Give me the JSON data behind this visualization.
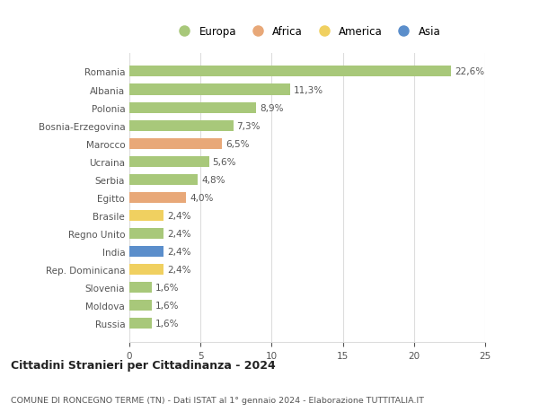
{
  "countries": [
    "Romania",
    "Albania",
    "Polonia",
    "Bosnia-Erzegovina",
    "Marocco",
    "Ucraina",
    "Serbia",
    "Egitto",
    "Brasile",
    "Regno Unito",
    "India",
    "Rep. Dominicana",
    "Slovenia",
    "Moldova",
    "Russia"
  ],
  "values": [
    22.6,
    11.3,
    8.9,
    7.3,
    6.5,
    5.6,
    4.8,
    4.0,
    2.4,
    2.4,
    2.4,
    2.4,
    1.6,
    1.6,
    1.6
  ],
  "labels": [
    "22,6%",
    "11,3%",
    "8,9%",
    "7,3%",
    "6,5%",
    "5,6%",
    "4,8%",
    "4,0%",
    "2,4%",
    "2,4%",
    "2,4%",
    "2,4%",
    "1,6%",
    "1,6%",
    "1,6%"
  ],
  "continents": [
    "Europa",
    "Europa",
    "Europa",
    "Europa",
    "Africa",
    "Europa",
    "Europa",
    "Africa",
    "America",
    "Europa",
    "Asia",
    "America",
    "Europa",
    "Europa",
    "Europa"
  ],
  "colors": {
    "Europa": "#a8c87a",
    "Africa": "#e8a878",
    "America": "#f0d060",
    "Asia": "#5b8ecb"
  },
  "legend_order": [
    "Europa",
    "Africa",
    "America",
    "Asia"
  ],
  "xlim": [
    0,
    25
  ],
  "xticks": [
    0,
    5,
    10,
    15,
    20,
    25
  ],
  "title": "Cittadini Stranieri per Cittadinanza - 2024",
  "subtitle": "COMUNE DI RONCEGNO TERME (TN) - Dati ISTAT al 1° gennaio 2024 - Elaborazione TUTTITALIA.IT",
  "bg_color": "#ffffff",
  "grid_color": "#dddddd",
  "label_fontsize": 7.5,
  "tick_fontsize": 7.5,
  "bar_height": 0.6
}
